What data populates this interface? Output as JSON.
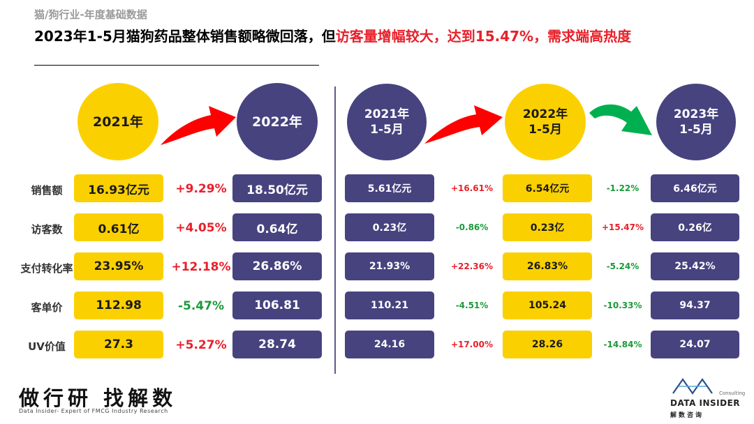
{
  "header": {
    "subtitle": "猫/狗行业-年度基础数据",
    "title_main": "2023年1-5月猫狗药品整体销售额略微回落，但",
    "title_highlight": "访客量增幅较大，达到15.47%，需求端高热度"
  },
  "circles": {
    "c2021": "2021年",
    "c2022": "2022年",
    "c2021m": "2021年\n1-5月",
    "c2022m": "2022年\n1-5月",
    "c2023m": "2023年\n1-5月"
  },
  "row_labels": [
    "销售额",
    "访客数",
    "支付转化率",
    "客单价",
    "UV价值"
  ],
  "annual": {
    "y2021": [
      "16.93亿元",
      "0.61亿",
      "23.95%",
      "112.98",
      "27.3"
    ],
    "change": [
      "+9.29%",
      "+4.05%",
      "+12.18%",
      "-5.47%",
      "+5.27%"
    ],
    "y2022": [
      "18.50亿元",
      "0.64亿",
      "26.86%",
      "106.81",
      "28.74"
    ]
  },
  "ytd": {
    "y2021": [
      "5.61亿元",
      "0.23亿",
      "21.93%",
      "110.21",
      "24.16"
    ],
    "change_a": [
      "+16.61%",
      "-0.86%",
      "+22.36%",
      "-4.51%",
      "+17.00%"
    ],
    "y2022": [
      "6.54亿元",
      "0.23亿",
      "26.83%",
      "105.24",
      "28.26"
    ],
    "change_b": [
      "-1.22%",
      "+15.47%",
      "-5.24%",
      "-10.33%",
      "-14.84%"
    ],
    "y2023": [
      "6.46亿元",
      "0.26亿",
      "25.42%",
      "94.37",
      "24.07"
    ]
  },
  "footer": {
    "slogan": "做行研 找解数",
    "slogan_sub": "Data Insider- Expert of FMCG Industry Research",
    "logo_name": "DATA INSIDER",
    "logo_cn": "解数咨询",
    "logo_consulting": "Consulting"
  },
  "colors": {
    "yellow": "#fbd000",
    "navy": "#47437f",
    "red": "#e8202a",
    "green": "#1a9a3a"
  }
}
